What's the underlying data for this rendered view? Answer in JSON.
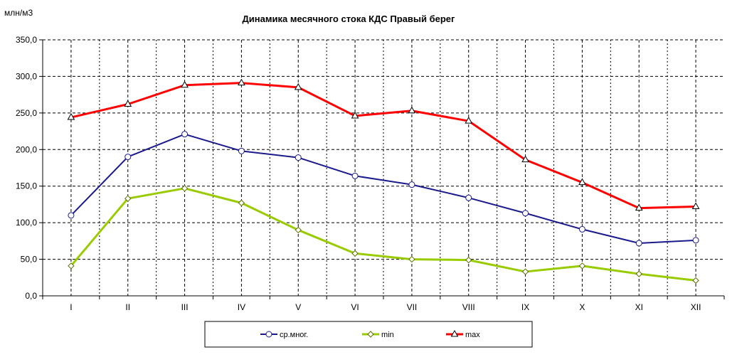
{
  "chart_data": {
    "type": "line",
    "title": "Динамика месячного стока КДС Правый берег",
    "ylabel": "млн/м3",
    "xlabel": "",
    "categories": [
      "I",
      "II",
      "III",
      "IV",
      "V",
      "VI",
      "VII",
      "VIII",
      "IX",
      "X",
      "XI",
      "XII"
    ],
    "ylim": [
      0,
      350
    ],
    "yticks": [
      0,
      50,
      100,
      150,
      200,
      250,
      300,
      350
    ],
    "ytick_labels": [
      "0,0",
      "50,0",
      "100,0",
      "150,0",
      "200,0",
      "250,0",
      "300,0",
      "350,0"
    ],
    "grid": true,
    "legend_position": "bottom",
    "series": [
      {
        "name": "ср.мног.",
        "color": "#1a1a8c",
        "marker": "circle",
        "values": [
          110,
          190,
          221,
          198,
          189,
          164,
          152,
          134,
          113,
          91,
          72,
          76
        ]
      },
      {
        "name": "min",
        "color": "#99cc00",
        "marker": "diamond",
        "values": [
          41,
          133,
          147,
          127,
          90,
          58,
          50,
          49,
          33,
          41,
          30,
          21
        ]
      },
      {
        "name": "max",
        "color": "#ff0000",
        "marker": "triangle",
        "values": [
          244,
          262,
          288,
          291,
          285,
          246,
          253,
          239,
          186,
          155,
          120,
          122
        ]
      }
    ]
  }
}
